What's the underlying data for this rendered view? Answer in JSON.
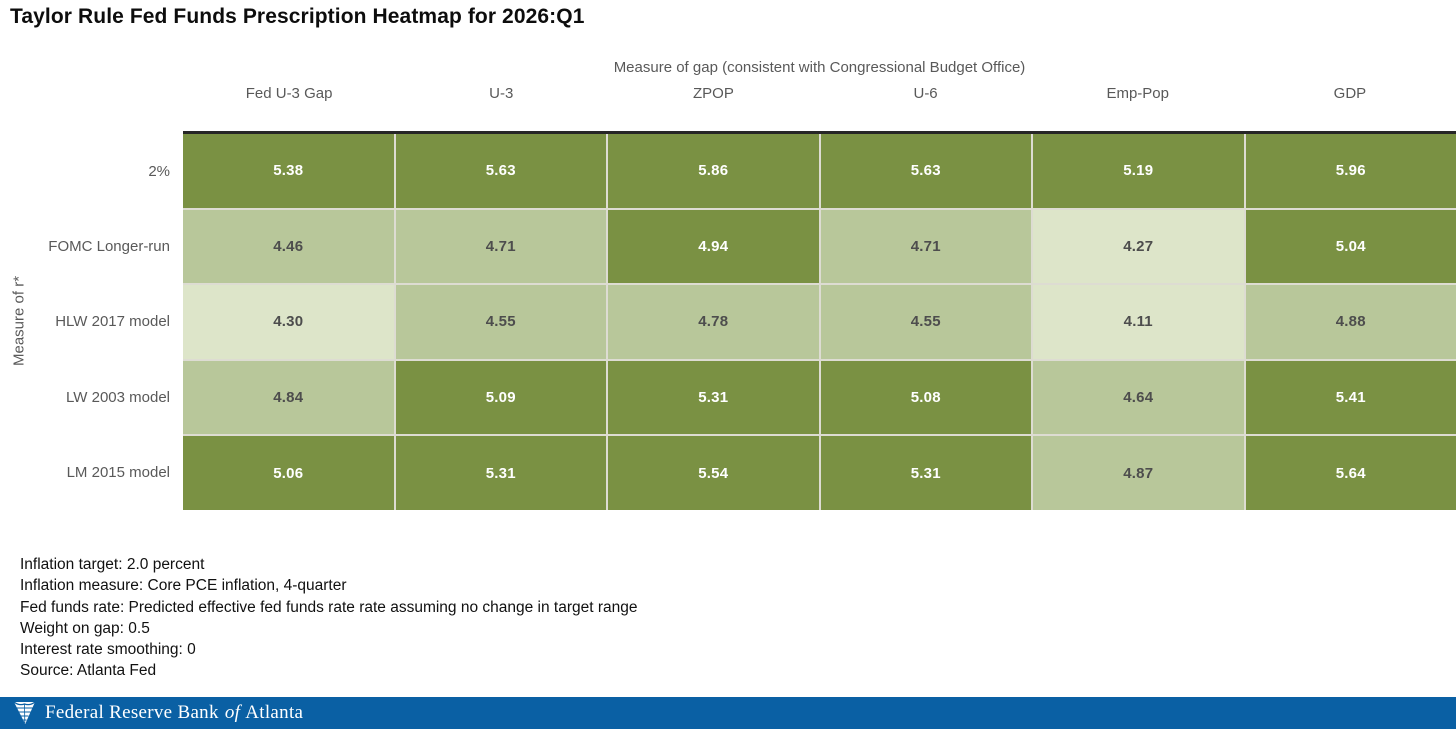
{
  "title": "Taylor Rule Fed Funds Prescription Heatmap for 2026:Q1",
  "chart_data": {
    "type": "heatmap",
    "title": "Taylor Rule Fed Funds Prescription Heatmap for 2026:Q1",
    "x_group_label": "Measure of gap (consistent with Congressional Budget Office)",
    "y_axis_label": "Measure of r*",
    "columns": [
      "Fed U-3 Gap",
      "U-3",
      "ZPOP",
      "U-6",
      "Emp-Pop",
      "GDP"
    ],
    "rows": [
      "2%",
      "FOMC Longer-run",
      "HLW 2017 model",
      "LW 2003 model",
      "LM 2015 model"
    ],
    "values": [
      [
        5.38,
        5.63,
        5.86,
        5.63,
        5.19,
        5.96
      ],
      [
        4.46,
        4.71,
        4.94,
        4.71,
        4.27,
        5.04
      ],
      [
        4.3,
        4.55,
        4.78,
        4.55,
        4.11,
        4.88
      ],
      [
        4.84,
        5.09,
        5.31,
        5.08,
        4.64,
        5.41
      ],
      [
        5.06,
        5.31,
        5.54,
        5.31,
        4.87,
        5.64
      ]
    ],
    "value_decimals": 2,
    "color_bins": [
      {
        "max": 4.35,
        "bg": "#dde5c9",
        "text": "#4d4d4d"
      },
      {
        "max": 4.9,
        "bg": "#b8c79a",
        "text": "#4d4d4d"
      },
      {
        "max": 99.0,
        "bg": "#7a9143",
        "text": "#ffffff"
      }
    ],
    "grid_line_color": "#dddcd2",
    "top_border_color": "#262626"
  },
  "footnotes": [
    "Inflation target: 2.0 percent",
    "Inflation measure: Core PCE inflation, 4-quarter",
    "Fed funds rate: Predicted effective fed funds rate rate assuming no change in target range",
    "Weight on gap: 0.5",
    "Interest rate smoothing: 0",
    "Source: Atlanta Fed"
  ],
  "footer": {
    "bg_color": "#0a60a4",
    "brand_prefix": "Federal Reserve Bank",
    "brand_connector": "of",
    "brand_suffix": "Atlanta",
    "logo": "atlanta-fed-eagle"
  }
}
